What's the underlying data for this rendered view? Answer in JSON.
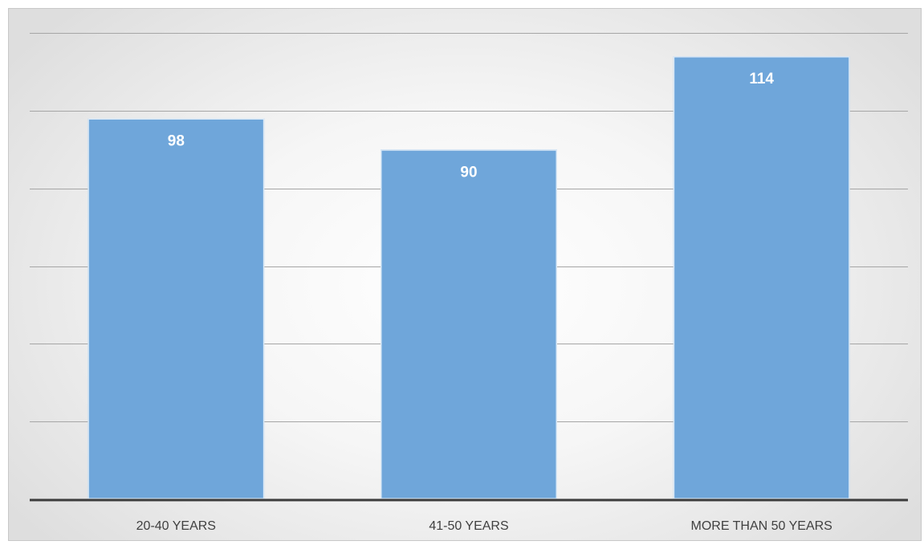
{
  "chart_data": {
    "type": "bar",
    "categories": [
      "20-40 YEARS",
      "41-50 YEARS",
      "MORE THAN 50 YEARS"
    ],
    "values": [
      98,
      90,
      114
    ],
    "title": "",
    "xlabel": "",
    "ylabel": "",
    "ylim": [
      0,
      120
    ],
    "grid": true,
    "legend": "none",
    "colors": {
      "bar": "#6fa6da",
      "data_label": "#ffffff",
      "gridline": "#a6a6a6",
      "axis": "#3c3c3c",
      "category_label": "#404040"
    }
  }
}
